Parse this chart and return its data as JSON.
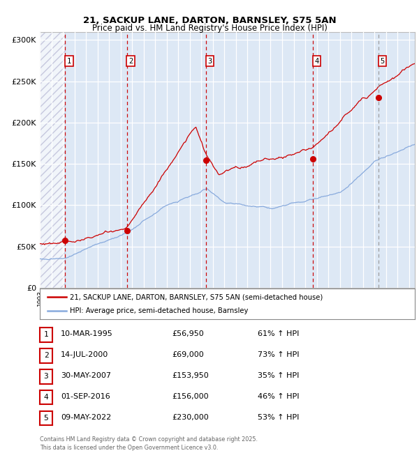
{
  "title1": "21, SACKUP LANE, DARTON, BARNSLEY, S75 5AN",
  "title2": "Price paid vs. HM Land Registry's House Price Index (HPI)",
  "ylim": [
    0,
    310000
  ],
  "yticks": [
    0,
    50000,
    100000,
    150000,
    200000,
    250000,
    300000
  ],
  "ytick_labels": [
    "£0",
    "£50K",
    "£100K",
    "£150K",
    "£200K",
    "£250K",
    "£300K"
  ],
  "background_color": "#dde8f5",
  "hatched_region_end_year": 1995.2,
  "red_line_color": "#cc0000",
  "blue_line_color": "#88aadd",
  "sale_marker_color": "#cc0000",
  "vline_color": "#cc0000",
  "vline5_color": "#999999",
  "sales": [
    {
      "num": 1,
      "date_dec": 1995.19,
      "price": 56950
    },
    {
      "num": 2,
      "date_dec": 2000.54,
      "price": 69000
    },
    {
      "num": 3,
      "date_dec": 2007.41,
      "price": 153950
    },
    {
      "num": 4,
      "date_dec": 2016.67,
      "price": 156000
    },
    {
      "num": 5,
      "date_dec": 2022.36,
      "price": 230000
    }
  ],
  "table_rows": [
    {
      "num": "1",
      "date": "10-MAR-1995",
      "price": "£56,950",
      "hpi": "61% ↑ HPI"
    },
    {
      "num": "2",
      "date": "14-JUL-2000",
      "price": "£69,000",
      "hpi": "73% ↑ HPI"
    },
    {
      "num": "3",
      "date": "30-MAY-2007",
      "price": "£153,950",
      "hpi": "35% ↑ HPI"
    },
    {
      "num": "4",
      "date": "01-SEP-2016",
      "price": "£156,000",
      "hpi": "46% ↑ HPI"
    },
    {
      "num": "5",
      "date": "09-MAY-2022",
      "price": "£230,000",
      "hpi": "53% ↑ HPI"
    }
  ],
  "legend_red_label": "21, SACKUP LANE, DARTON, BARNSLEY, S75 5AN (semi-detached house)",
  "legend_blue_label": "HPI: Average price, semi-detached house, Barnsley",
  "footnote": "Contains HM Land Registry data © Crown copyright and database right 2025.\nThis data is licensed under the Open Government Licence v3.0.",
  "xmin": 1993.0,
  "xmax": 2025.5
}
